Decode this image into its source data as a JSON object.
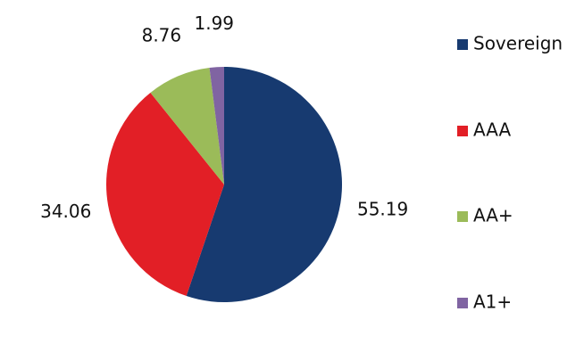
{
  "chart_data": {
    "type": "pie",
    "categories": [
      "Sovereign",
      "AAA",
      "AA+",
      "A1+"
    ],
    "values": [
      55.19,
      34.06,
      8.76,
      1.99
    ],
    "colors": [
      "#173a70",
      "#e21f26",
      "#9bbb59",
      "#8064a2"
    ],
    "legend": "right"
  }
}
